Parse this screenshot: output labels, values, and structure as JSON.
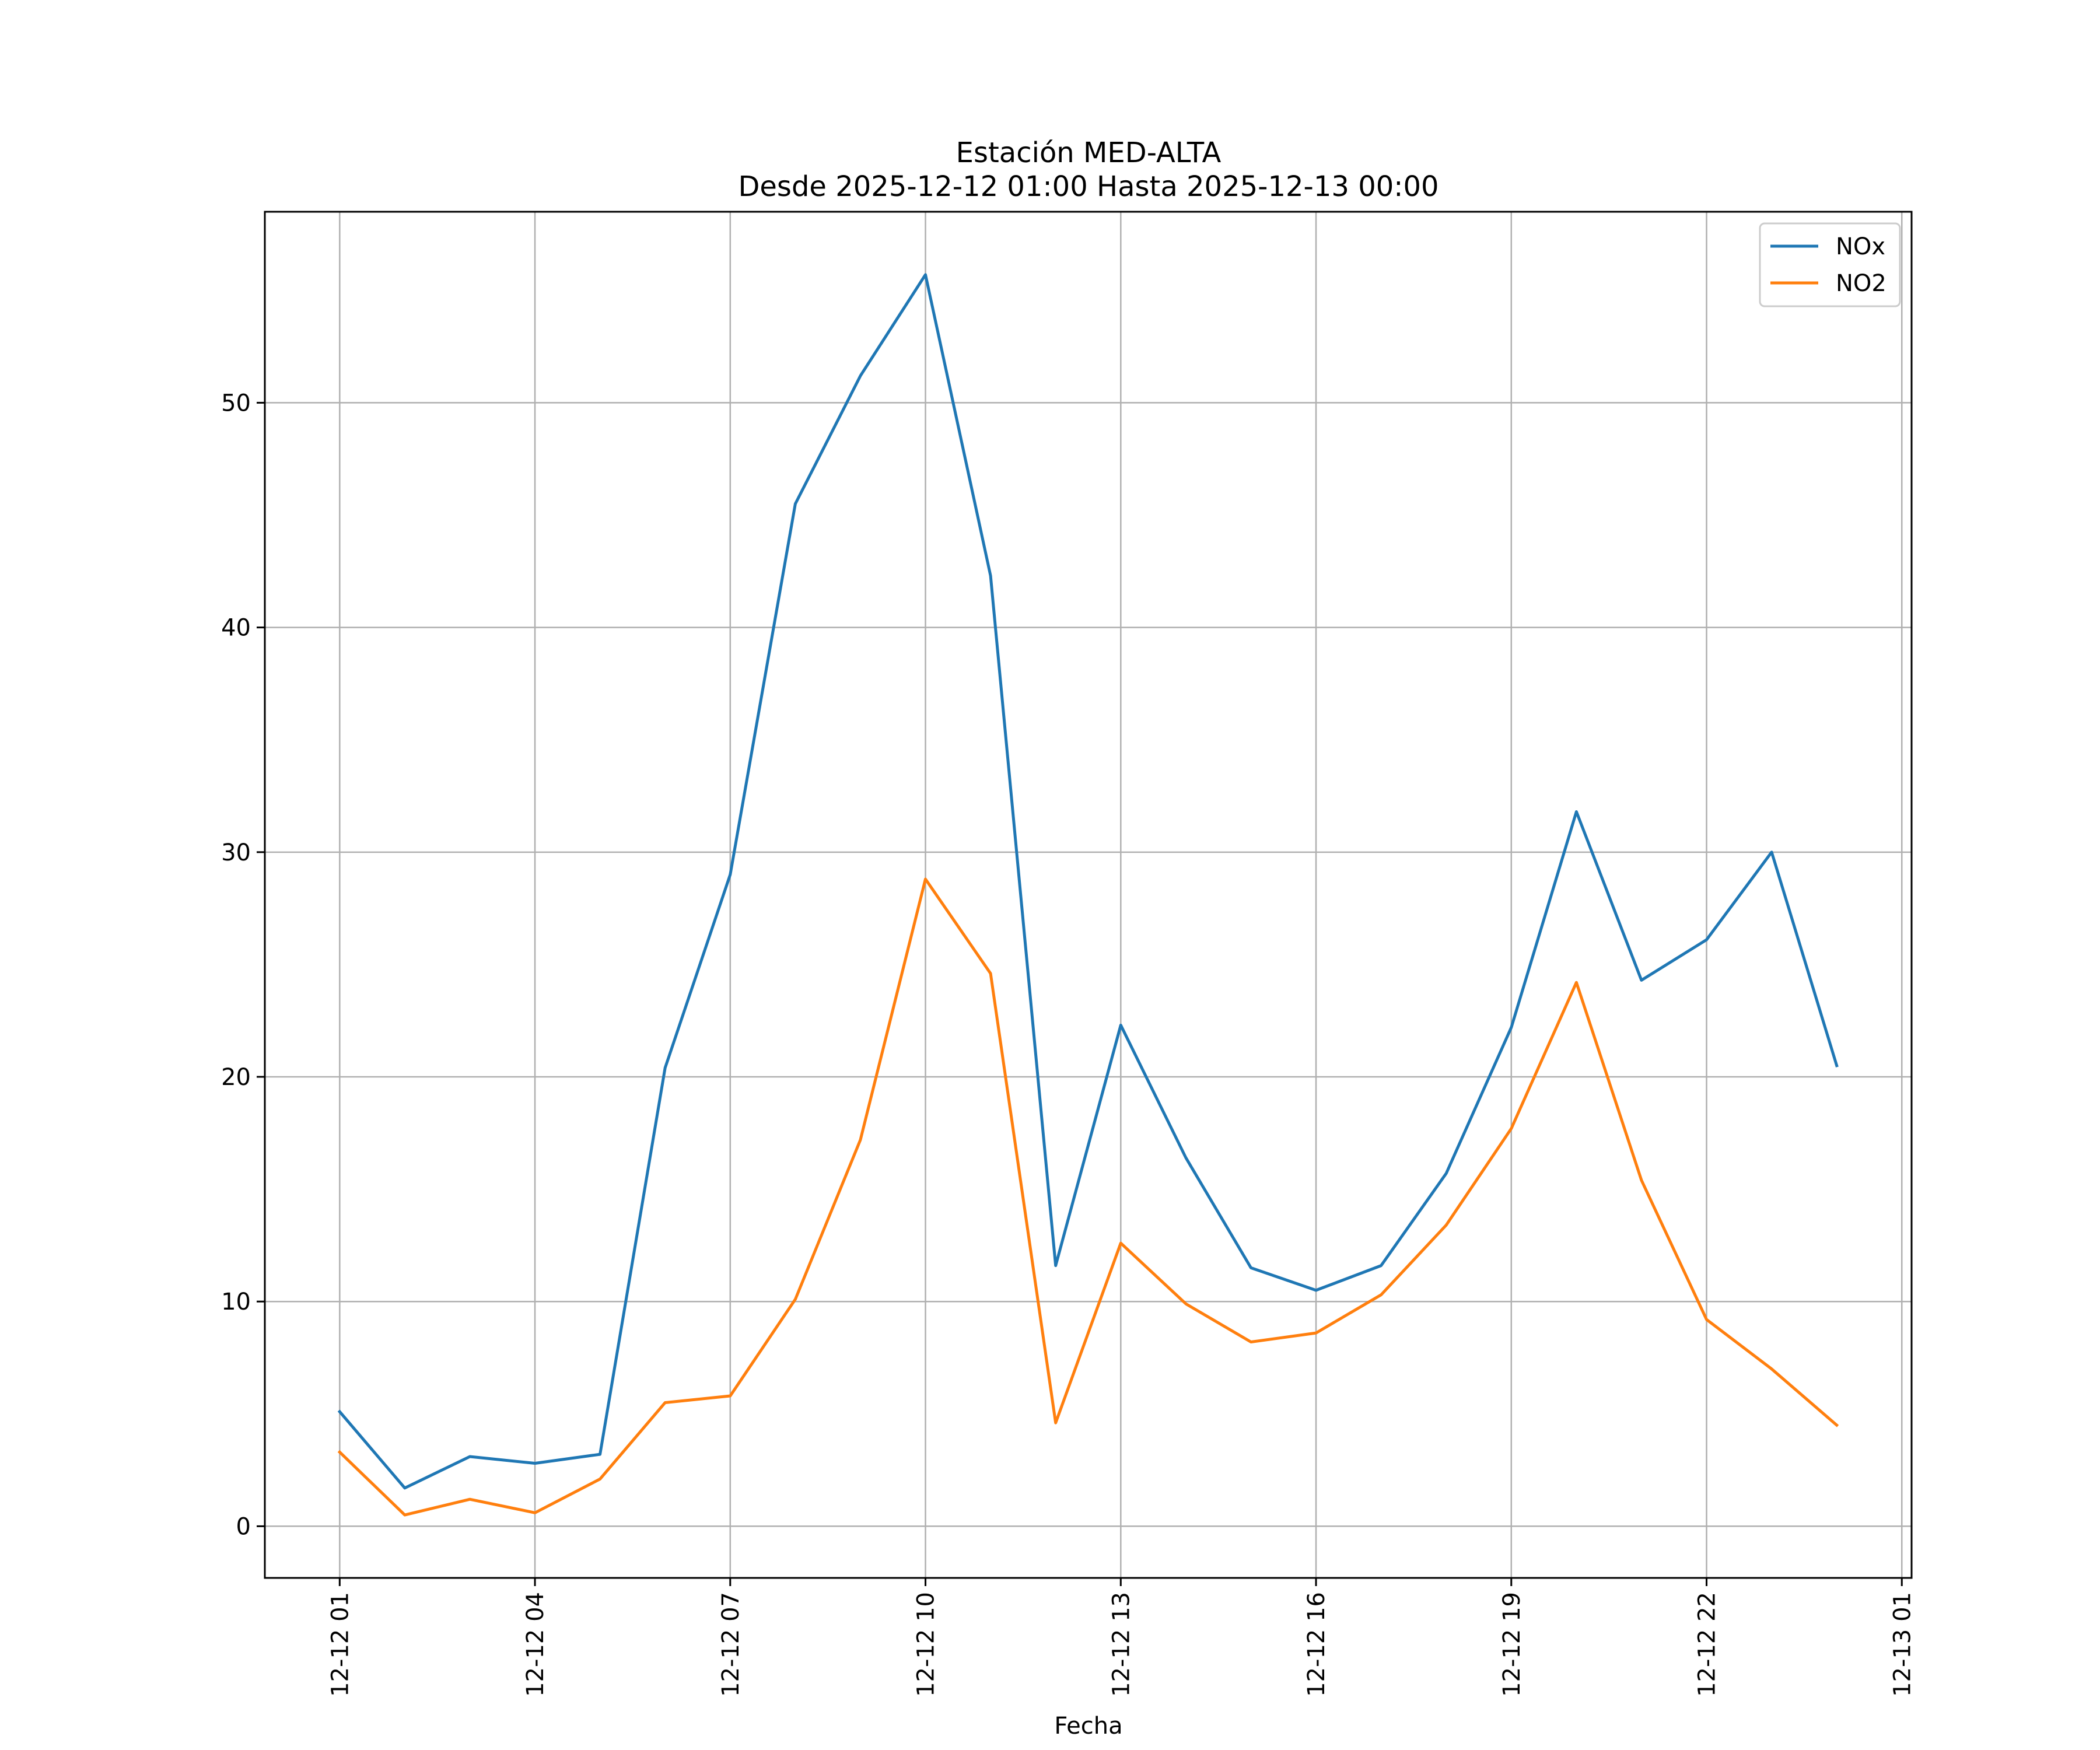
{
  "chart_data": {
    "type": "line",
    "title": "Estación MED-ALTA",
    "subtitle": "Desde 2025-12-12 01:00 Hasta 2025-12-13 00:00",
    "xlabel": "Fecha",
    "ylabel": "",
    "x": [
      "2025-12-12 01:00",
      "2025-12-12 02:00",
      "2025-12-12 03:00",
      "2025-12-12 04:00",
      "2025-12-12 05:00",
      "2025-12-12 06:00",
      "2025-12-12 07:00",
      "2025-12-12 08:00",
      "2025-12-12 09:00",
      "2025-12-12 10:00",
      "2025-12-12 11:00",
      "2025-12-12 12:00",
      "2025-12-12 13:00",
      "2025-12-12 14:00",
      "2025-12-12 15:00",
      "2025-12-12 16:00",
      "2025-12-12 17:00",
      "2025-12-12 18:00",
      "2025-12-12 19:00",
      "2025-12-12 20:00",
      "2025-12-12 21:00",
      "2025-12-12 22:00",
      "2025-12-12 23:00",
      "2025-12-13 00:00"
    ],
    "series": [
      {
        "name": "NOx",
        "color": "#1f77b4",
        "values": [
          5.1,
          1.7,
          3.1,
          2.8,
          3.2,
          20.4,
          29.0,
          45.5,
          51.2,
          55.7,
          42.3,
          11.6,
          22.3,
          16.4,
          11.5,
          10.5,
          11.6,
          15.7,
          22.2,
          31.8,
          24.3,
          26.1,
          30.0,
          20.5
        ]
      },
      {
        "name": "NO2",
        "color": "#ff7f0e",
        "values": [
          3.3,
          0.5,
          1.2,
          0.6,
          2.1,
          5.5,
          5.8,
          10.1,
          17.2,
          28.8,
          24.6,
          4.6,
          12.6,
          9.9,
          8.2,
          8.6,
          10.3,
          13.4,
          17.7,
          24.2,
          15.4,
          9.2,
          7.0,
          4.5
        ]
      }
    ],
    "xticks": [
      {
        "label": "12-12 01",
        "x": "2025-12-12 01:00"
      },
      {
        "label": "12-12 04",
        "x": "2025-12-12 04:00"
      },
      {
        "label": "12-12 07",
        "x": "2025-12-12 07:00"
      },
      {
        "label": "12-12 10",
        "x": "2025-12-12 10:00"
      },
      {
        "label": "12-12 13",
        "x": "2025-12-12 13:00"
      },
      {
        "label": "12-12 16",
        "x": "2025-12-12 16:00"
      },
      {
        "label": "12-12 19",
        "x": "2025-12-12 19:00"
      },
      {
        "label": "12-12 22",
        "x": "2025-12-12 22:00"
      },
      {
        "label": "12-13 01",
        "x": "2025-12-13 01:00"
      }
    ],
    "yticks": [
      0,
      10,
      20,
      30,
      40,
      50
    ],
    "xlim": [
      "2025-12-11 23:51",
      "2025-12-13 01:09"
    ],
    "ylim": [
      -2.3,
      58.5
    ],
    "grid": true,
    "legend": "top-right"
  }
}
